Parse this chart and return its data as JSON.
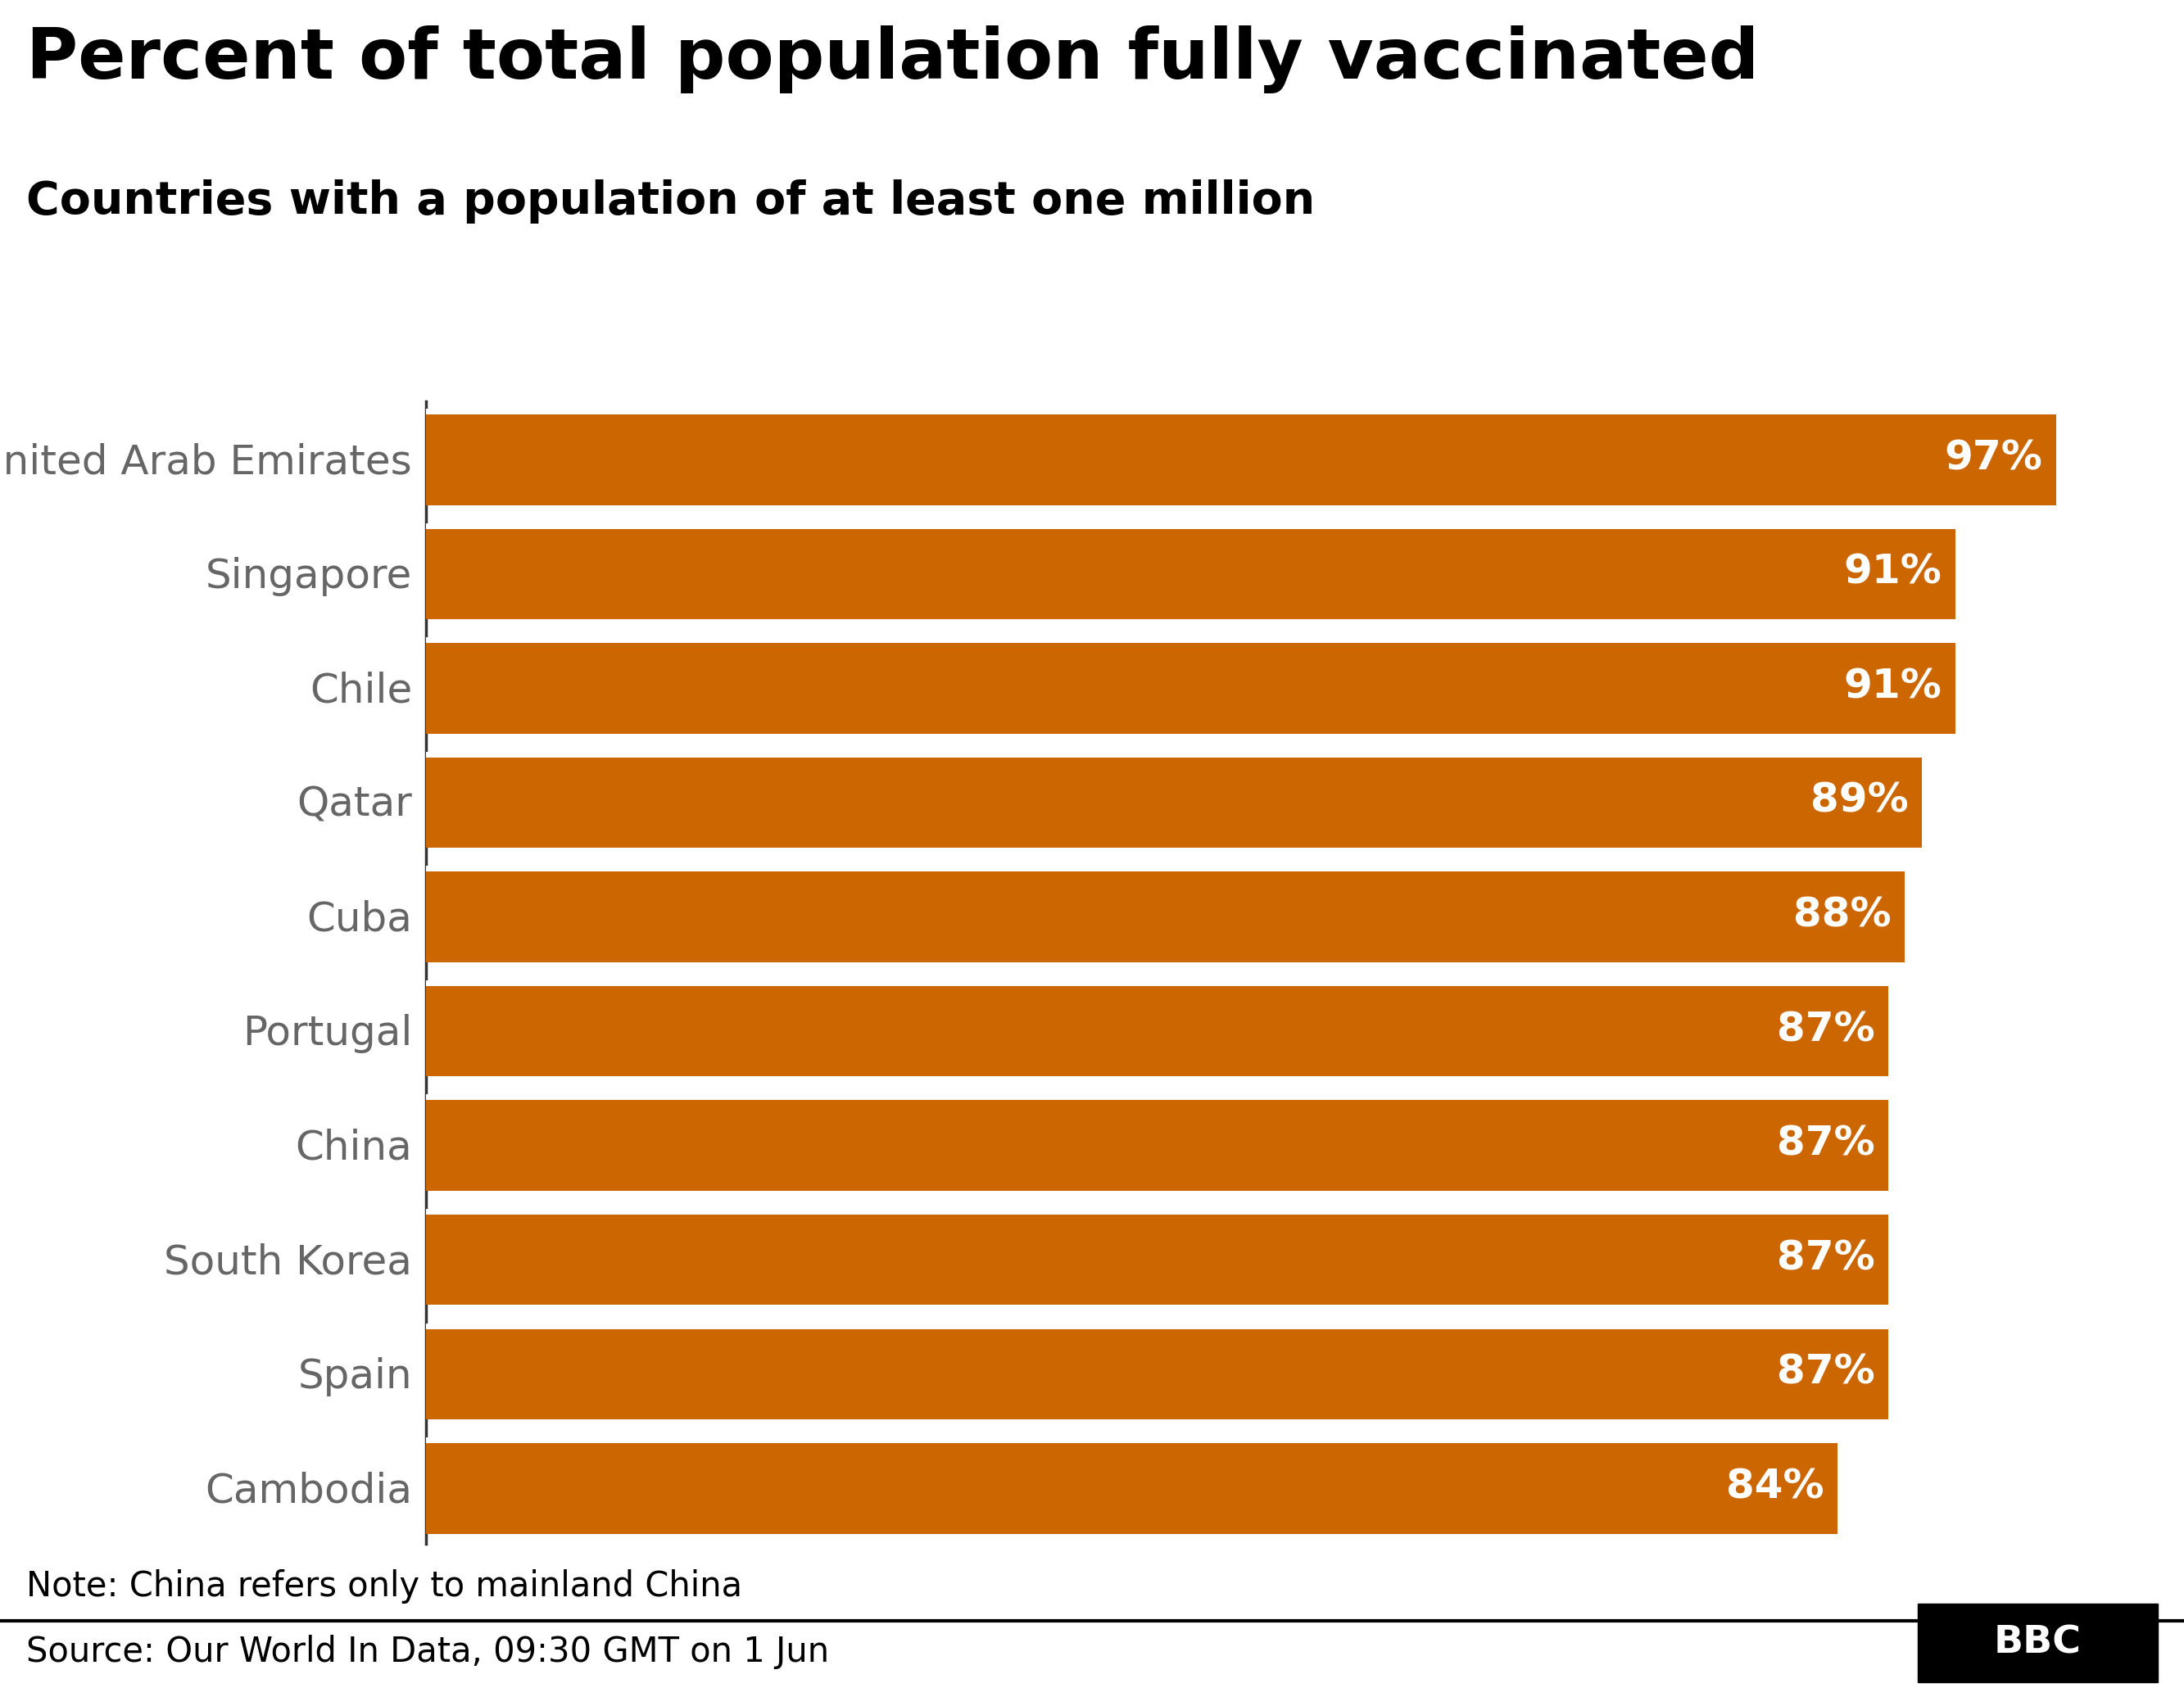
{
  "title": "Percent of total population fully vaccinated",
  "subtitle": "Countries with a population of at least one million",
  "countries": [
    "United Arab Emirates",
    "Singapore",
    "Chile",
    "Qatar",
    "Cuba",
    "Portugal",
    "China",
    "South Korea",
    "Spain",
    "Cambodia"
  ],
  "values": [
    97,
    91,
    91,
    89,
    88,
    87,
    87,
    87,
    87,
    84
  ],
  "bar_color": "#CC6600",
  "bar_text_color": "#ffffff",
  "label_color": "#666666",
  "background_color": "#ffffff",
  "note": "Note: China refers only to mainland China",
  "source": "Source: Our World In Data, 09:30 GMT on 1 Jun",
  "title_fontsize": 62,
  "subtitle_fontsize": 40,
  "label_fontsize": 36,
  "value_fontsize": 36,
  "note_fontsize": 30,
  "source_fontsize": 30,
  "xlim": [
    0,
    102
  ],
  "bar_height": 0.82,
  "title_color": "#000000",
  "subtitle_color": "#000000",
  "separator_color": "#000000",
  "spine_color": "#333333"
}
